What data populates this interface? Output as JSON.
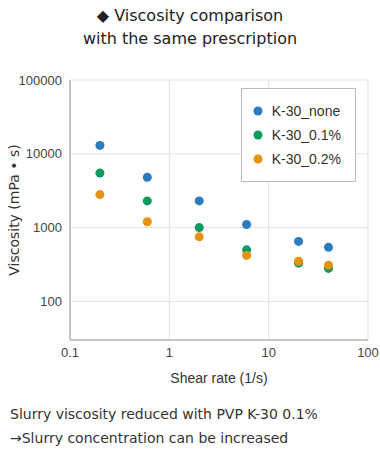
{
  "chart_data": {
    "type": "scatter",
    "title": "◆ Viscosity comparison\nwith the same prescription",
    "x_label": "Shear rate (1/s)",
    "y_label": "Viscosity (mPa • s)",
    "x": [
      0.2,
      0.6,
      2,
      6,
      20,
      40
    ],
    "series": [
      {
        "name": "K-30_none",
        "color": "#2b7bbf",
        "marker": "circle",
        "values": [
          13000,
          4800,
          2300,
          1100,
          650,
          540
        ]
      },
      {
        "name": "K-30_0.1%",
        "color": "#0e9a63",
        "marker": "circle",
        "values": [
          5500,
          2300,
          1000,
          500,
          330,
          280
        ]
      },
      {
        "name": "K-30_0.2%",
        "color": "#e5930f",
        "marker": "circle",
        "values": [
          2800,
          1200,
          750,
          420,
          350,
          310
        ]
      }
    ],
    "xlim": [
      0.1,
      100
    ],
    "ylim": [
      30,
      100000
    ],
    "xticks": [
      0.1,
      1,
      10,
      100
    ],
    "yticks": [
      100,
      1000,
      10000,
      100000
    ],
    "log": true,
    "grid": true,
    "legend": "upper right",
    "annotations": [
      "Slurry viscosity reduced with PVP K-30 0.1%",
      "→Slurry concentration can be increased"
    ]
  }
}
